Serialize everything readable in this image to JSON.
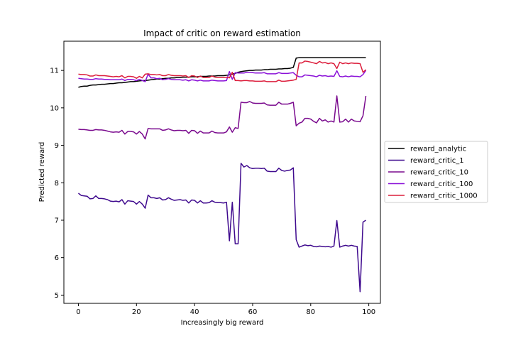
{
  "chart_data": {
    "type": "line",
    "title": "Impact of critic on reward estimation",
    "xlabel": "Increasingly big reward",
    "ylabel": "Predicted reward",
    "xlim": [
      -5,
      104
    ],
    "ylim": [
      4.78,
      11.78
    ],
    "x_ticks": [
      0,
      20,
      40,
      60,
      80,
      100
    ],
    "y_ticks": [
      5,
      6,
      7,
      8,
      9,
      10,
      11
    ],
    "grid": false,
    "legend_position": "right, outside plot",
    "x": [
      0,
      1,
      2,
      3,
      4,
      5,
      6,
      7,
      8,
      9,
      10,
      11,
      12,
      13,
      14,
      15,
      16,
      17,
      18,
      19,
      20,
      21,
      22,
      23,
      24,
      25,
      26,
      27,
      28,
      29,
      30,
      31,
      32,
      33,
      34,
      35,
      36,
      37,
      38,
      39,
      40,
      41,
      42,
      43,
      44,
      45,
      46,
      47,
      48,
      49,
      50,
      51,
      52,
      53,
      54,
      55,
      56,
      57,
      58,
      59,
      60,
      61,
      62,
      63,
      64,
      65,
      66,
      67,
      68,
      69,
      70,
      71,
      72,
      73,
      74,
      75,
      76,
      77,
      78,
      79,
      80,
      81,
      82,
      83,
      84,
      85,
      86,
      87,
      88,
      89,
      90,
      91,
      92,
      93,
      94,
      95,
      96,
      97,
      98,
      99
    ],
    "series": [
      {
        "name": "reward_analytic",
        "color": "#000000",
        "values": [
          10.55,
          10.57,
          10.58,
          10.58,
          10.6,
          10.61,
          10.61,
          10.62,
          10.63,
          10.63,
          10.64,
          10.65,
          10.65,
          10.66,
          10.67,
          10.67,
          10.68,
          10.69,
          10.7,
          10.7,
          10.71,
          10.72,
          10.73,
          10.73,
          10.74,
          10.75,
          10.76,
          10.77,
          10.77,
          10.78,
          10.79,
          10.79,
          10.8,
          10.8,
          10.81,
          10.81,
          10.82,
          10.82,
          10.82,
          10.83,
          10.83,
          10.83,
          10.84,
          10.84,
          10.84,
          10.85,
          10.85,
          10.85,
          10.86,
          10.86,
          10.86,
          10.87,
          10.88,
          10.9,
          10.92,
          10.95,
          10.97,
          10.98,
          10.99,
          11.0,
          11.0,
          11.01,
          11.01,
          11.01,
          11.02,
          11.02,
          11.03,
          11.03,
          11.03,
          11.04,
          11.04,
          11.05,
          11.05,
          11.06,
          11.08,
          11.33,
          11.34,
          11.34,
          11.34,
          11.34,
          11.34,
          11.34,
          11.34,
          11.34,
          11.34,
          11.34,
          11.34,
          11.34,
          11.34,
          11.34,
          11.34,
          11.34,
          11.34,
          11.34,
          11.34,
          11.34,
          11.34,
          11.34,
          11.34,
          11.34
        ]
      },
      {
        "name": "reward_critic_1",
        "color": "#3f0a8e",
        "values": [
          7.72,
          7.66,
          7.65,
          7.64,
          7.57,
          7.58,
          7.65,
          7.58,
          7.58,
          7.57,
          7.55,
          7.51,
          7.5,
          7.51,
          7.49,
          7.55,
          7.43,
          7.52,
          7.51,
          7.5,
          7.43,
          7.5,
          7.43,
          7.32,
          7.67,
          7.6,
          7.6,
          7.58,
          7.6,
          7.54,
          7.55,
          7.6,
          7.56,
          7.53,
          7.54,
          7.55,
          7.53,
          7.54,
          7.46,
          7.54,
          7.53,
          7.46,
          7.52,
          7.46,
          7.46,
          7.47,
          7.52,
          7.48,
          7.47,
          7.47,
          7.46,
          7.48,
          6.45,
          7.48,
          6.37,
          6.37,
          8.52,
          8.42,
          8.46,
          8.4,
          8.38,
          8.39,
          8.39,
          8.38,
          8.39,
          8.31,
          8.3,
          8.3,
          8.3,
          8.39,
          8.33,
          8.31,
          8.33,
          8.34,
          8.4,
          6.48,
          6.28,
          6.31,
          6.34,
          6.32,
          6.33,
          6.3,
          6.29,
          6.31,
          6.3,
          6.29,
          6.3,
          6.28,
          6.31,
          6.99,
          6.28,
          6.31,
          6.33,
          6.31,
          6.33,
          6.31,
          6.3,
          5.09,
          6.95,
          7.0
        ]
      },
      {
        "name": "reward_critic_10",
        "color": "#7a0a8e",
        "values": [
          9.43,
          9.42,
          9.42,
          9.41,
          9.4,
          9.4,
          9.42,
          9.41,
          9.41,
          9.4,
          9.38,
          9.36,
          9.35,
          9.36,
          9.35,
          9.4,
          9.3,
          9.37,
          9.37,
          9.36,
          9.3,
          9.37,
          9.3,
          9.17,
          9.45,
          9.44,
          9.44,
          9.44,
          9.44,
          9.4,
          9.41,
          9.44,
          9.41,
          9.39,
          9.4,
          9.4,
          9.39,
          9.4,
          9.32,
          9.4,
          9.39,
          9.32,
          9.38,
          9.33,
          9.33,
          9.33,
          9.38,
          9.34,
          9.33,
          9.33,
          9.33,
          9.36,
          9.49,
          9.35,
          9.47,
          9.45,
          10.15,
          10.14,
          10.14,
          10.17,
          10.13,
          10.12,
          10.12,
          10.12,
          10.13,
          10.08,
          10.07,
          10.07,
          10.07,
          10.15,
          10.1,
          10.1,
          10.1,
          10.12,
          10.15,
          9.52,
          9.59,
          9.62,
          9.72,
          9.72,
          9.7,
          9.64,
          9.6,
          9.72,
          9.65,
          9.68,
          9.62,
          9.65,
          9.62,
          10.32,
          9.62,
          9.63,
          9.7,
          9.62,
          9.7,
          9.65,
          9.64,
          9.63,
          9.79,
          10.32
        ]
      },
      {
        "name": "reward_critic_100",
        "color": "#8a10d8",
        "values": [
          10.79,
          10.78,
          10.77,
          10.77,
          10.76,
          10.76,
          10.78,
          10.77,
          10.77,
          10.76,
          10.76,
          10.75,
          10.75,
          10.75,
          10.75,
          10.77,
          10.73,
          10.76,
          10.76,
          10.75,
          10.73,
          10.76,
          10.73,
          10.7,
          10.9,
          10.8,
          10.8,
          10.78,
          10.79,
          10.75,
          10.76,
          10.78,
          10.76,
          10.75,
          10.75,
          10.75,
          10.74,
          10.75,
          10.72,
          10.75,
          10.74,
          10.72,
          10.74,
          10.72,
          10.72,
          10.72,
          10.74,
          10.73,
          10.72,
          10.72,
          10.72,
          10.73,
          10.97,
          10.76,
          10.94,
          10.93,
          10.93,
          10.93,
          10.95,
          10.95,
          10.94,
          10.93,
          10.93,
          10.93,
          10.94,
          10.91,
          10.91,
          10.91,
          10.91,
          10.94,
          10.92,
          10.92,
          10.92,
          10.93,
          10.94,
          10.87,
          10.83,
          10.83,
          10.88,
          10.87,
          10.86,
          10.85,
          10.83,
          10.87,
          10.85,
          10.86,
          10.84,
          10.85,
          10.84,
          10.99,
          10.84,
          10.83,
          10.85,
          10.83,
          10.85,
          10.84,
          10.84,
          10.83,
          10.89,
          11.0
        ]
      },
      {
        "name": "reward_critic_1000",
        "color": "#dc1e3c",
        "values": [
          10.9,
          10.89,
          10.89,
          10.88,
          10.85,
          10.85,
          10.88,
          10.86,
          10.86,
          10.86,
          10.85,
          10.84,
          10.83,
          10.84,
          10.83,
          10.86,
          10.8,
          10.84,
          10.84,
          10.83,
          10.79,
          10.84,
          10.8,
          10.9,
          10.91,
          10.89,
          10.89,
          10.88,
          10.89,
          10.86,
          10.86,
          10.89,
          10.87,
          10.86,
          10.86,
          10.86,
          10.85,
          10.86,
          10.81,
          10.86,
          10.85,
          10.81,
          10.85,
          10.81,
          10.81,
          10.81,
          10.85,
          10.82,
          10.81,
          10.81,
          10.81,
          10.82,
          10.8,
          10.95,
          10.73,
          10.73,
          10.72,
          10.73,
          10.73,
          10.72,
          10.72,
          10.71,
          10.71,
          10.71,
          10.72,
          10.7,
          10.7,
          10.7,
          10.7,
          10.74,
          10.71,
          10.71,
          10.72,
          10.73,
          10.74,
          10.76,
          11.2,
          11.2,
          11.25,
          11.24,
          11.22,
          11.2,
          11.18,
          11.24,
          11.2,
          11.21,
          11.18,
          11.2,
          11.18,
          11.05,
          11.22,
          11.18,
          11.2,
          11.18,
          11.2,
          11.19,
          11.19,
          11.18,
          10.95,
          11.02
        ]
      }
    ]
  }
}
